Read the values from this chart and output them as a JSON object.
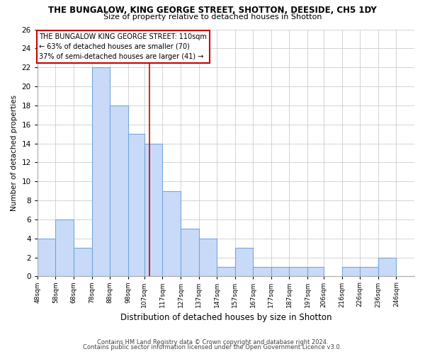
{
  "title": "THE BUNGALOW, KING GEORGE STREET, SHOTTON, DEESIDE, CH5 1DY",
  "subtitle": "Size of property relative to detached houses in Shotton",
  "xlabel": "Distribution of detached houses by size in Shotton",
  "ylabel": "Number of detached properties",
  "bin_labels": [
    "48sqm",
    "58sqm",
    "68sqm",
    "78sqm",
    "88sqm",
    "98sqm",
    "107sqm",
    "117sqm",
    "127sqm",
    "137sqm",
    "147sqm",
    "157sqm",
    "167sqm",
    "177sqm",
    "187sqm",
    "197sqm",
    "206sqm",
    "216sqm",
    "226sqm",
    "236sqm",
    "246sqm"
  ],
  "bin_left_edges": [
    48,
    58,
    68,
    78,
    88,
    98,
    107,
    117,
    127,
    137,
    147,
    157,
    167,
    177,
    187,
    197,
    206,
    216,
    226,
    236,
    246
  ],
  "bin_widths": [
    10,
    10,
    10,
    10,
    10,
    9,
    10,
    10,
    10,
    10,
    10,
    10,
    10,
    10,
    10,
    9,
    10,
    10,
    10,
    10,
    10
  ],
  "counts": [
    4,
    6,
    3,
    22,
    18,
    15,
    14,
    9,
    5,
    4,
    1,
    3,
    1,
    1,
    1,
    1,
    0,
    1,
    1,
    2,
    0
  ],
  "bar_color": "#c9daf8",
  "bar_edge_color": "#6fa8dc",
  "marker_value": 110,
  "marker_line_color": "#cc0000",
  "annotation_line1": "THE BUNGALOW KING GEORGE STREET: 110sqm",
  "annotation_line2": "← 63% of detached houses are smaller (70)",
  "annotation_line3": "37% of semi-detached houses are larger (41) →",
  "annotation_box_edge": "#cc0000",
  "ylim": [
    0,
    26
  ],
  "yticks": [
    0,
    2,
    4,
    6,
    8,
    10,
    12,
    14,
    16,
    18,
    20,
    22,
    24,
    26
  ],
  "xlim_min": 48,
  "xlim_max": 256,
  "footer_line1": "Contains HM Land Registry data © Crown copyright and database right 2024.",
  "footer_line2": "Contains public sector information licensed under the Open Government Licence v3.0.",
  "bg_color": "#ffffff",
  "grid_color": "#cccccc"
}
